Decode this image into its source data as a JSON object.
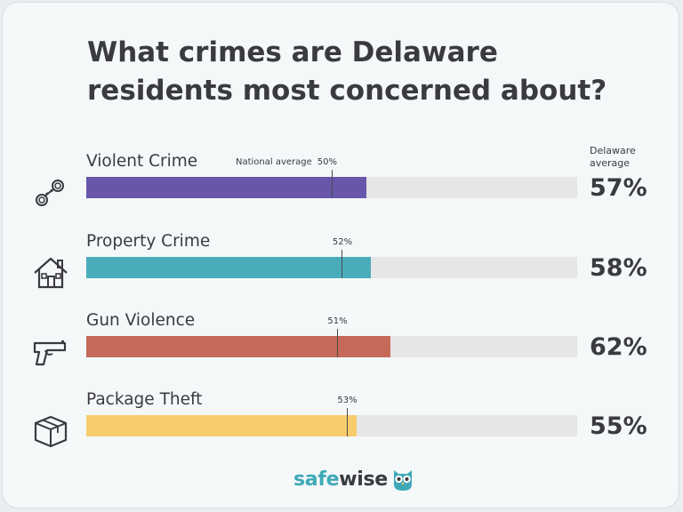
{
  "title_lines": [
    "What crimes are Delaware",
    "residents most concerned about?"
  ],
  "de_average_header": "Delaware\naverage",
  "logo": {
    "part1": "safe",
    "part2": "wise",
    "icon": "owl-icon"
  },
  "colors": {
    "track": "#e6e6e6",
    "text": "#3a3a3f",
    "brand": "#3fa9b8"
  },
  "chart_data": {
    "type": "bar",
    "orientation": "horizontal",
    "categories": [
      "Violent Crime",
      "Property Crime",
      "Gun Violence",
      "Package Theft"
    ],
    "series": [
      {
        "name": "Delaware average",
        "values": [
          57,
          58,
          62,
          55
        ],
        "labels": [
          "57%",
          "58%",
          "62%",
          "55%"
        ]
      },
      {
        "name": "National average",
        "values": [
          50,
          52,
          51,
          53
        ],
        "labels": [
          "50%",
          "52%",
          "51%",
          "53%"
        ]
      }
    ],
    "national_average_prefix": "National average",
    "bar_colors": [
      "#6856ab",
      "#4aacbb",
      "#c56a58",
      "#f8cc6c"
    ],
    "icons": [
      "handcuffs-icon",
      "house-icon",
      "gun-icon",
      "package-icon"
    ],
    "xlim": [
      0,
      100
    ]
  }
}
